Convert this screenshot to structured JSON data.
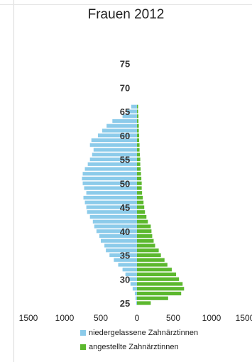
{
  "chart_data": {
    "type": "bar",
    "orientation": "horizontal-population-pyramid",
    "title": "Frauen 2012",
    "age_ticks": [
      25,
      30,
      35,
      40,
      45,
      50,
      55,
      60,
      65,
      70,
      75
    ],
    "x_ticks": [
      "1500",
      "1000",
      "500",
      "0",
      "500",
      "1000",
      "1500"
    ],
    "xlim": [
      -1500,
      1500
    ],
    "ylim": [
      24,
      77
    ],
    "ages": [
      25,
      26,
      27,
      28,
      29,
      30,
      31,
      32,
      33,
      34,
      35,
      36,
      37,
      38,
      39,
      40,
      41,
      42,
      43,
      44,
      45,
      46,
      47,
      48,
      49,
      50,
      51,
      52,
      53,
      54,
      55,
      56,
      57,
      58,
      59,
      60,
      61,
      62,
      63,
      64,
      65,
      66
    ],
    "series": [
      {
        "name": "niedergelassene Zahnärztinnen",
        "color": "#8ccbea",
        "side": "left",
        "values": [
          10,
          20,
          30,
          60,
          90,
          120,
          160,
          200,
          260,
          320,
          380,
          430,
          450,
          500,
          520,
          560,
          590,
          610,
          650,
          690,
          700,
          720,
          740,
          700,
          730,
          750,
          760,
          750,
          720,
          680,
          650,
          620,
          600,
          650,
          630,
          540,
          480,
          420,
          340,
          200,
          140,
          80
        ]
      },
      {
        "name": "angestellte Zahnärztinnen",
        "color": "#5cb82e",
        "side": "right",
        "values": [
          190,
          430,
          610,
          650,
          630,
          580,
          540,
          480,
          420,
          380,
          330,
          300,
          250,
          230,
          210,
          200,
          190,
          150,
          130,
          110,
          100,
          90,
          80,
          70,
          65,
          65,
          60,
          55,
          50,
          45,
          45,
          40,
          35,
          35,
          30,
          30,
          25,
          25,
          20,
          20,
          15,
          15
        ]
      }
    ],
    "legend_position": "bottom",
    "grid": false
  }
}
